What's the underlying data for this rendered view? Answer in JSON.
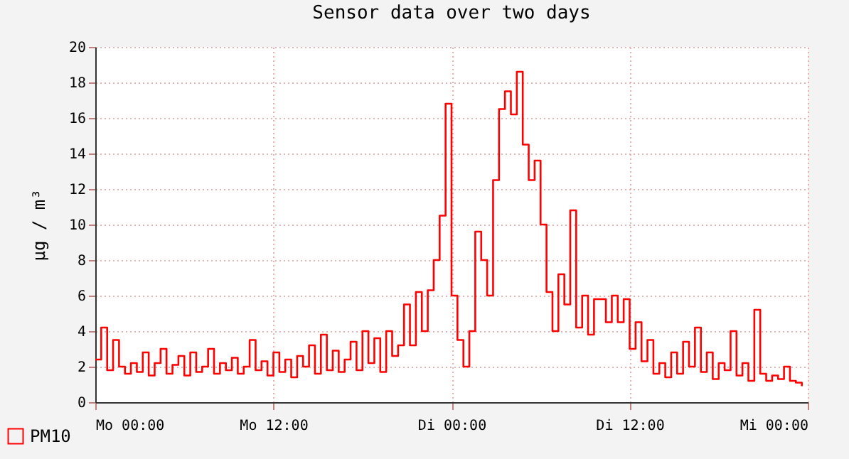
{
  "chart_data": {
    "type": "step",
    "title": "Sensor data over two days",
    "ylabel": "µg / m³",
    "x": [
      "--01-01T00:00",
      "--01-01T00:24",
      "--01-01T00:48",
      "--01-01T01:12",
      "--01-01T01:36",
      "--01-01T02:00",
      "--01-01T02:24",
      "--01-01T02:48",
      "--01-01T03:12",
      "--01-01T03:36",
      "--01-01T04:00",
      "--01-01T04:24",
      "--01-01T04:48",
      "--01-01T05:12",
      "--01-01T05:36",
      "--01-01T06:00",
      "--01-01T06:24",
      "--01-01T06:48",
      "--01-01T07:12",
      "--01-01T07:36",
      "--01-01T08:00",
      "--01-01T08:24",
      "--01-01T08:48",
      "--01-01T09:12",
      "--01-01T09:36",
      "--01-01T10:00",
      "--01-01T10:24",
      "--01-01T10:48",
      "--01-01T11:12",
      "--01-01T11:36",
      "--01-01T12:00",
      "--01-01T12:24",
      "--01-01T12:48",
      "--01-01T13:12",
      "--01-01T13:36",
      "--01-01T14:00",
      "--01-01T14:24",
      "--01-01T14:48",
      "--01-01T15:12",
      "--01-01T15:36",
      "--01-01T16:00",
      "--01-01T16:24",
      "--01-01T16:48",
      "--01-01T17:12",
      "--01-01T17:36",
      "--01-01T18:00",
      "--01-01T18:24",
      "--01-01T18:48",
      "--01-01T19:12",
      "--01-01T19:36",
      "--01-01T20:00",
      "--01-01T20:24",
      "--01-01T20:48",
      "--01-01T21:12",
      "--01-01T21:36",
      "--01-01T22:00",
      "--01-01T22:24",
      "--01-01T22:48",
      "--01-01T23:12",
      "--01-01T23:36",
      "--01-02T00:00",
      "--01-02T00:24",
      "--01-02T00:48",
      "--01-02T01:12",
      "--01-02T01:36",
      "--01-02T02:00",
      "--01-02T02:24",
      "--01-02T02:48",
      "--01-02T03:12",
      "--01-02T03:36",
      "--01-02T04:00",
      "--01-02T04:24",
      "--01-02T04:48",
      "--01-02T05:12",
      "--01-02T05:36",
      "--01-02T06:00",
      "--01-02T06:24",
      "--01-02T06:48",
      "--01-02T07:12",
      "--01-02T07:36",
      "--01-02T08:00",
      "--01-02T08:24",
      "--01-02T08:48",
      "--01-02T09:12",
      "--01-02T09:36",
      "--01-02T10:00",
      "--01-02T10:24",
      "--01-02T10:48",
      "--01-02T11:12",
      "--01-02T11:36",
      "--01-02T12:00",
      "--01-02T12:24",
      "--01-02T12:48",
      "--01-02T13:12",
      "--01-02T13:36",
      "--01-02T14:00",
      "--01-02T14:24",
      "--01-02T14:48",
      "--01-02T15:12",
      "--01-02T15:36",
      "--01-02T16:00",
      "--01-02T16:24",
      "--01-02T16:48",
      "--01-02T17:12",
      "--01-02T17:36",
      "--01-02T18:00",
      "--01-02T18:24",
      "--01-02T18:48",
      "--01-02T19:12",
      "--01-02T19:36",
      "--01-02T20:00",
      "--01-02T20:24",
      "--01-02T20:48",
      "--01-02T21:12",
      "--01-02T21:36",
      "--01-02T22:00",
      "--01-02T22:24",
      "--01-02T22:48",
      "--01-02T23:12",
      "--01-02T23:36"
    ],
    "series": [
      {
        "name": "PM10",
        "color": "#ff0000",
        "values": [
          2.4,
          4.2,
          1.8,
          3.5,
          2.0,
          1.6,
          2.2,
          1.7,
          2.8,
          1.5,
          2.2,
          3.0,
          1.6,
          2.1,
          2.6,
          1.5,
          2.8,
          1.7,
          2.0,
          3.0,
          1.6,
          2.2,
          1.8,
          2.5,
          1.6,
          2.0,
          3.5,
          1.8,
          2.3,
          1.5,
          2.8,
          1.7,
          2.4,
          1.4,
          2.6,
          2.0,
          3.2,
          1.6,
          3.8,
          1.8,
          2.9,
          1.7,
          2.4,
          3.4,
          1.8,
          4.0,
          2.2,
          3.6,
          1.7,
          4.0,
          2.6,
          3.2,
          5.5,
          3.2,
          6.2,
          4.0,
          6.3,
          8.0,
          10.5,
          16.8,
          6.0,
          3.5,
          2.0,
          4.0,
          9.6,
          8.0,
          6.0,
          12.5,
          16.5,
          17.5,
          16.2,
          18.6,
          14.5,
          12.5,
          13.6,
          10.0,
          6.2,
          4.0,
          7.2,
          5.5,
          10.8,
          4.2,
          6.0,
          3.8,
          5.8,
          5.8,
          4.5,
          6.0,
          4.5,
          5.8,
          3.0,
          4.5,
          2.3,
          3.5,
          1.6,
          2.2,
          1.4,
          2.8,
          1.6,
          3.4,
          2.0,
          4.2,
          1.7,
          2.8,
          1.3,
          2.2,
          1.8,
          4.0,
          1.5,
          2.2,
          1.2,
          5.2,
          1.6,
          1.2,
          1.5,
          1.3,
          2.0,
          1.2,
          1.1,
          0.9
        ]
      }
    ],
    "xlim": [
      "--01-01T00:00",
      "--01-03T00:00"
    ],
    "xticks": [
      {
        "value": "--01-01T00:00",
        "label": "Mo 00:00"
      },
      {
        "value": "--01-01T12:00",
        "label": "Mo 12:00"
      },
      {
        "value": "--01-02T00:00",
        "label": "Di 00:00"
      },
      {
        "value": "--01-02T12:00",
        "label": "Di 12:00"
      },
      {
        "value": "--01-03T00:00",
        "label": "Mi 00:00"
      }
    ],
    "ylim": [
      0,
      20
    ],
    "yticks": [
      0,
      2,
      4,
      6,
      8,
      10,
      12,
      14,
      16,
      18,
      20
    ],
    "grid": true,
    "legend": "bottom"
  }
}
